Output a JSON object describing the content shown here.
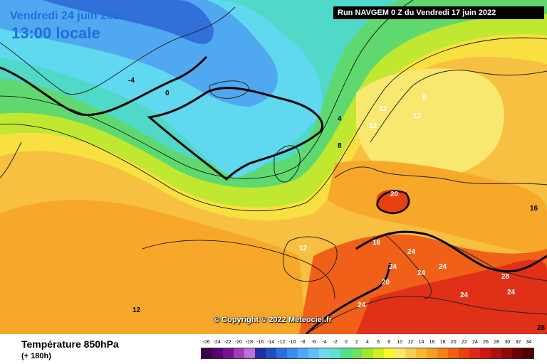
{
  "header": {
    "valid_date": "Vendredi 24 juin 2022",
    "valid_time": "13:00 locale",
    "run_info": "Run NAVGEM 0 Z du Vendredi 17 juin 2022"
  },
  "footer": {
    "variable_title": "Température 850hPa",
    "forecast_hour": "(+ 180h)",
    "copyright": "© Copyright © 2022 Meteociel.fr"
  },
  "legend": {
    "labels": [
      "-26",
      "-24",
      "-22",
      "-20",
      "-18",
      "-16",
      "-14",
      "-12",
      "-10",
      "-8",
      "-6",
      "-4",
      "-2",
      "0",
      "2",
      "4",
      "6",
      "8",
      "10",
      "12",
      "14",
      "16",
      "18",
      "20",
      "22",
      "24",
      "26",
      "28",
      "30",
      "32",
      "34"
    ],
    "colors": [
      "#3b0046",
      "#5a0070",
      "#7a1090",
      "#a040b0",
      "#c070d0",
      "#2030a0",
      "#2050c0",
      "#2a70e0",
      "#3a90f0",
      "#50a8f8",
      "#60c0f8",
      "#70d8f0",
      "#60e0d0",
      "#50e090",
      "#70e060",
      "#a0e830",
      "#d0f020",
      "#f8f830",
      "#f8e870",
      "#f8d050",
      "#f8b830",
      "#f8a020",
      "#f88018",
      "#f06010",
      "#e84010",
      "#e02818",
      "#d01810",
      "#b01010",
      "#900808",
      "#700000",
      "#500000"
    ]
  },
  "contour_labels": [
    "-4",
    "0",
    "4",
    "8",
    "12",
    "12",
    "12",
    "8",
    "16",
    "16",
    "20",
    "20",
    "24",
    "24",
    "24",
    "24",
    "24",
    "24",
    "28",
    "28",
    "12",
    "12",
    "20"
  ],
  "colors": {
    "run_box_bg": "#000000",
    "title_blue": "#1f6fe0"
  }
}
